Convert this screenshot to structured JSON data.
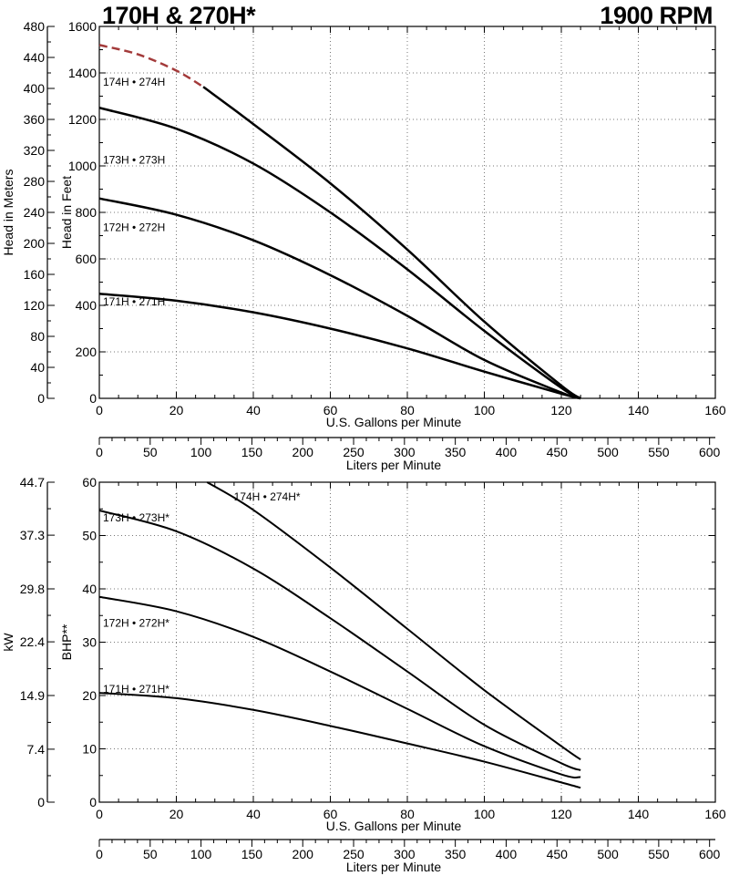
{
  "header": {
    "title": "170H & 270H*",
    "speed": "1900 RPM"
  },
  "chart_data": [
    {
      "type": "line",
      "title": "170H & 270H*",
      "xlabel": "U.S. Gallons per Minute",
      "x2label": "Liters per Minute",
      "ylabel": "Head in Feet",
      "y2label": "Head in Meters",
      "xlim": [
        0,
        160
      ],
      "ylim": [
        0,
        1600
      ],
      "y2lim": [
        0,
        480
      ],
      "x_ticks": [
        0,
        20,
        40,
        60,
        80,
        100,
        120,
        140,
        160
      ],
      "y_ticks": [
        0,
        200,
        400,
        600,
        800,
        1000,
        1200,
        1400,
        1600
      ],
      "y2_ticks": [
        0,
        40,
        80,
        120,
        160,
        200,
        240,
        280,
        320,
        360,
        400,
        440,
        480
      ],
      "x2_ticks": [
        0,
        50,
        100,
        150,
        200,
        250,
        300,
        350,
        400,
        450,
        500,
        550,
        600
      ],
      "grid": true,
      "series": [
        {
          "name": "171H • 271H",
          "label_at": [
            0,
            420
          ],
          "x": [
            0,
            20,
            40,
            60,
            80,
            100,
            120,
            125
          ],
          "y": [
            450,
            420,
            370,
            300,
            215,
            115,
            20,
            0
          ]
        },
        {
          "name": "172H • 272H",
          "label_at": [
            0,
            740
          ],
          "x": [
            0,
            20,
            40,
            60,
            80,
            100,
            120,
            125
          ],
          "y": [
            860,
            790,
            680,
            530,
            355,
            165,
            25,
            0
          ]
        },
        {
          "name": "173H • 273H",
          "label_at": [
            0,
            1030
          ],
          "x": [
            0,
            20,
            40,
            60,
            80,
            100,
            120,
            125
          ],
          "y": [
            1250,
            1160,
            1010,
            800,
            555,
            290,
            45,
            0
          ]
        },
        {
          "name": "174H • 274H",
          "label_at": [
            0,
            1365
          ],
          "extrapolated_until_x": 27,
          "extrapolated_color": "#a33a3a",
          "x": [
            0,
            10,
            20,
            27,
            40,
            60,
            80,
            100,
            120,
            125
          ],
          "y": [
            1520,
            1480,
            1410,
            1340,
            1180,
            925,
            640,
            330,
            55,
            0
          ]
        }
      ]
    },
    {
      "type": "line",
      "xlabel": "U.S. Gallons per Minute",
      "x2label": "Liters per Minute",
      "ylabel": "BHP**",
      "y2label": "kW",
      "xlim": [
        0,
        160
      ],
      "ylim": [
        0,
        60
      ],
      "y2lim": [
        0,
        44.7
      ],
      "x_ticks": [
        0,
        20,
        40,
        60,
        80,
        100,
        120,
        140,
        160
      ],
      "y_ticks": [
        0,
        10,
        20,
        30,
        40,
        50,
        60
      ],
      "y2_ticks": [
        "0",
        "7.4",
        "14.9",
        "22.4",
        "29.8",
        "37.3",
        "44.7"
      ],
      "x2_ticks": [
        0,
        50,
        100,
        150,
        200,
        250,
        300,
        350,
        400,
        450,
        500,
        550,
        600
      ],
      "grid": true,
      "series": [
        {
          "name": "171H • 271H*",
          "label_at": [
            0,
            21.4
          ],
          "x": [
            0,
            20,
            40,
            60,
            80,
            100,
            120,
            125
          ],
          "y": [
            20.5,
            19.5,
            17.3,
            14.3,
            11,
            7.6,
            3.7,
            2.7
          ]
        },
        {
          "name": "172H • 272H*",
          "label_at": [
            0,
            33.8
          ],
          "x": [
            0,
            20,
            40,
            60,
            80,
            100,
            120,
            125
          ],
          "y": [
            38.5,
            35.8,
            31,
            24.5,
            17.5,
            10.5,
            5.2,
            4.7
          ]
        },
        {
          "name": "173H • 273H*",
          "label_at": [
            0,
            53.5
          ],
          "x": [
            0,
            20,
            40,
            60,
            80,
            100,
            120,
            125
          ],
          "y": [
            54.7,
            50.8,
            43.8,
            34.5,
            24.5,
            14.5,
            7.3,
            6
          ]
        },
        {
          "name": "174H • 274H*",
          "label_at": [
            34,
            57.4
          ],
          "x": [
            28,
            40,
            60,
            80,
            100,
            120,
            125
          ],
          "y": [
            60,
            54.8,
            44,
            32.5,
            21,
            10.5,
            8
          ]
        }
      ]
    }
  ]
}
